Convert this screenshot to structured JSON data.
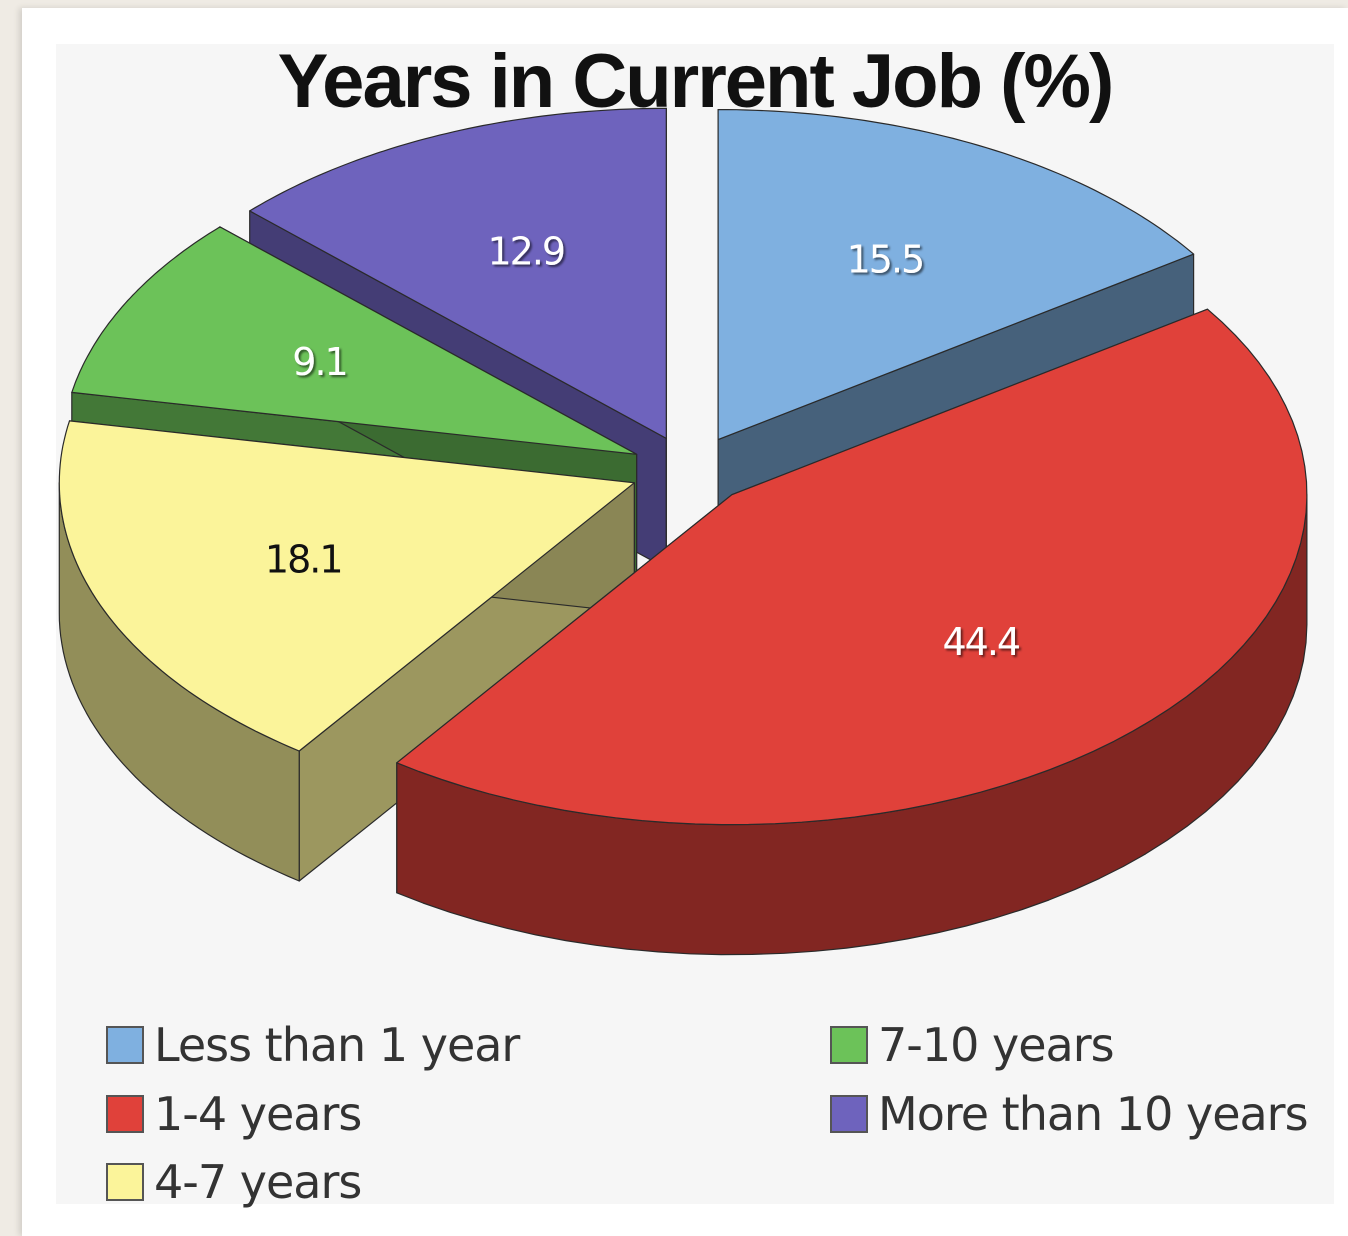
{
  "chart_data": {
    "type": "pie",
    "title": "Years in Current Job (%)",
    "categories": [
      "Less than 1 year",
      "1-4 years",
      "4-7 years",
      "7-10 years",
      "More than 10 years"
    ],
    "values": [
      15.5,
      44.4,
      18.1,
      9.1,
      12.9
    ],
    "value_labels": [
      "15.5",
      "44.4",
      "18.1",
      "9.1",
      "12.9"
    ],
    "colors": [
      "#7fb0e0",
      "#e0413a",
      "#fbf49a",
      "#6cc259",
      "#6e63bd"
    ],
    "legend_position": "bottom",
    "style": "3d-exploded"
  }
}
